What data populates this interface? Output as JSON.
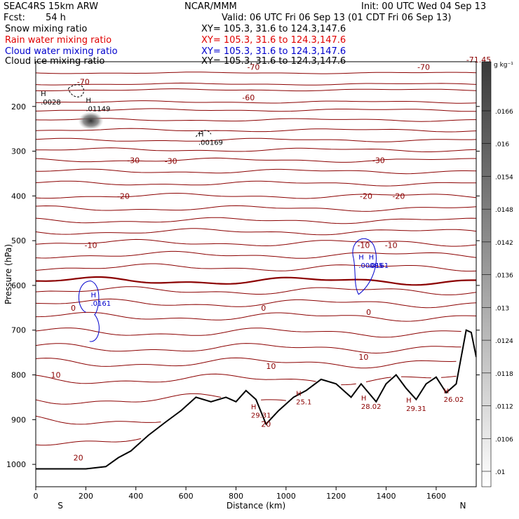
{
  "header": {
    "model": "SEAC4RS 15km ARW",
    "org": "NCAR/MMM",
    "init": "Init: 00 UTC Wed 04 Sep 13",
    "fcst_label": "Fcst:",
    "fcst_value": "54 h",
    "valid": "Valid: 06 UTC Fri 06 Sep 13 (01 CDT Fri 06 Sep 13)"
  },
  "fields": [
    {
      "name": "Snow mixing ratio",
      "xy": "XY= 105.3, 31.6 to 124.3,147.6",
      "color": "#000000"
    },
    {
      "name": "Rain water mixing ratio",
      "xy": "XY= 105.3, 31.6 to 124.3,147.6",
      "color": "#ff0000"
    },
    {
      "name": "Cloud water mixing ratio",
      "xy": "XY= 105.3, 31.6 to 124.3,147.6",
      "color": "#0000cc"
    },
    {
      "name": "Cloud ice mixing ratio",
      "xy": "XY= 105.3, 31.6 to 124.3,147.6",
      "color": "#000000"
    }
  ],
  "chart_data": {
    "type": "contour-cross-section",
    "xlabel": "Distance (km)",
    "ylabel": "Pressure (hPa)",
    "xlim": [
      0,
      1760
    ],
    "ylim": [
      1050,
      100
    ],
    "x_ticks": [
      0,
      200,
      400,
      600,
      800,
      1000,
      1200,
      1400,
      1600
    ],
    "y_ticks": [
      200,
      300,
      400,
      500,
      600,
      700,
      800,
      900,
      1000
    ],
    "x_end_labels": {
      "left": "S",
      "right": "N"
    },
    "colorbar": {
      "unit": "g kg⁻¹",
      "labels": [
        ".0166",
        ".016",
        ".0154",
        ".0148",
        ".0142",
        ".0136",
        ".013",
        ".0124",
        ".0118",
        ".0112",
        ".0106",
        ".01"
      ]
    },
    "temperature_contours": [
      {
        "value": -70,
        "labels": [
          {
            "x": 190,
            "p": 145,
            "text": "-70"
          },
          {
            "x": 870,
            "p": 112,
            "text": "-70"
          },
          {
            "x": 1550,
            "p": 112,
            "text": "-70"
          },
          {
            "x": 1770,
            "p": 95,
            "text": "-71.45"
          }
        ]
      },
      {
        "value": -60,
        "labels": [
          {
            "x": 850,
            "p": 180,
            "text": "-60"
          }
        ]
      },
      {
        "value": -50,
        "labels": []
      },
      {
        "value": -40,
        "labels": []
      },
      {
        "value": -30,
        "labels": [
          {
            "x": 390,
            "p": 320,
            "text": "-30"
          },
          {
            "x": 540,
            "p": 322,
            "text": "-30"
          },
          {
            "x": 1370,
            "p": 320,
            "text": "-30"
          }
        ]
      },
      {
        "value": -20,
        "labels": [
          {
            "x": 350,
            "p": 400,
            "text": "-20"
          },
          {
            "x": 1320,
            "p": 400,
            "text": "-20"
          },
          {
            "x": 1450,
            "p": 400,
            "text": "-20"
          }
        ]
      },
      {
        "value": -10,
        "labels": [
          {
            "x": 220,
            "p": 510,
            "text": "-10"
          },
          {
            "x": 1310,
            "p": 510,
            "text": "-10"
          },
          {
            "x": 1420,
            "p": 510,
            "text": "-10"
          }
        ]
      },
      {
        "value": 0,
        "labels": [
          {
            "x": 150,
            "p": 650,
            "text": "0"
          },
          {
            "x": 910,
            "p": 650,
            "text": "0"
          },
          {
            "x": 1330,
            "p": 660,
            "text": "0"
          }
        ]
      },
      {
        "value": 10,
        "labels": [
          {
            "x": 80,
            "p": 800,
            "text": "10"
          },
          {
            "x": 940,
            "p": 780,
            "text": "10"
          },
          {
            "x": 1310,
            "p": 760,
            "text": "10"
          }
        ]
      },
      {
        "value": 20,
        "labels": [
          {
            "x": 170,
            "p": 985,
            "text": "20"
          },
          {
            "x": 920,
            "p": 910,
            "text": "20"
          }
        ]
      }
    ],
    "highs": [
      {
        "x": 20,
        "p": 180,
        "label": ".0028",
        "color": "#000000"
      },
      {
        "x": 200,
        "p": 195,
        "label": ".01149",
        "color": "#000000"
      },
      {
        "x": 650,
        "p": 270,
        "label": ".00169",
        "color": "#000000"
      },
      {
        "x": 220,
        "p": 630,
        "label": ".0161",
        "color": "#0000cc"
      },
      {
        "x": 1290,
        "p": 545,
        "label": ".00085",
        "color": "#0000cc"
      },
      {
        "x": 1330,
        "p": 545,
        "label": ".0161",
        "color": "#0000cc"
      },
      {
        "x": 860,
        "p": 880,
        "label": "29.31",
        "color": "#8b0000"
      },
      {
        "x": 1040,
        "p": 850,
        "label": "25.1",
        "color": "#8b0000"
      },
      {
        "x": 1300,
        "p": 860,
        "label": "28.02",
        "color": "#8b0000"
      },
      {
        "x": 1480,
        "p": 865,
        "label": "29.31",
        "color": "#8b0000"
      },
      {
        "x": 1630,
        "p": 845,
        "label": "26.02",
        "color": "#8b0000"
      }
    ],
    "terrain_km": [
      0,
      100,
      200,
      280,
      330,
      380,
      450,
      520,
      580,
      640,
      700,
      760,
      800,
      840,
      880,
      920,
      970,
      1030,
      1080,
      1140,
      1200,
      1260,
      1300,
      1360,
      1400,
      1440,
      1480,
      1520,
      1560,
      1600,
      1640,
      1680,
      1700,
      1720,
      1740,
      1760
    ],
    "terrain_hpa": [
      1010,
      1010,
      1010,
      1005,
      985,
      970,
      935,
      905,
      880,
      850,
      860,
      850,
      860,
      835,
      855,
      910,
      880,
      850,
      835,
      810,
      820,
      850,
      820,
      860,
      820,
      800,
      830,
      855,
      820,
      805,
      840,
      820,
      760,
      700,
      705,
      760
    ]
  }
}
